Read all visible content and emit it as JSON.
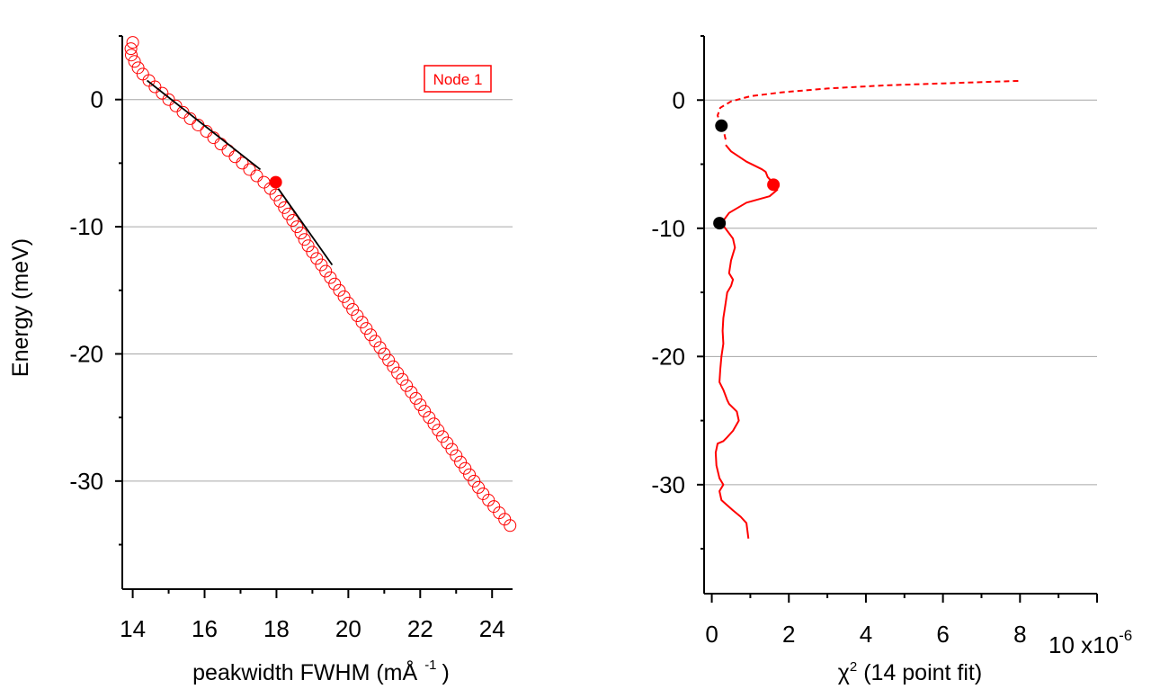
{
  "chart_data": [
    {
      "type": "scatter",
      "xlabel": "peakwidth FWHM (mÅ",
      "xlabel_sup": "-1",
      "xlabel_close": ")",
      "ylabel": "Energy (meV)",
      "xlim": [
        13.8,
        24.6
      ],
      "ylim": [
        -38.5,
        5
      ],
      "xticks": [
        14,
        16,
        18,
        20,
        22,
        24
      ],
      "yticks": [
        0,
        -10,
        -20,
        -30
      ],
      "grid": "horizontal",
      "legend": {
        "label": "Node 1",
        "color": "#ff0000",
        "placement": "top-right"
      },
      "series": [
        {
          "marker": "open-circle",
          "color": "#ff0000",
          "x": [
            14.0,
            13.95,
            13.96,
            14.05,
            14.15,
            14.28,
            14.45,
            14.62,
            14.82,
            15.0,
            15.2,
            15.4,
            15.6,
            15.82,
            16.05,
            16.25,
            16.45,
            16.65,
            16.85,
            17.05,
            17.25,
            17.45,
            17.65,
            17.83,
            17.98,
            18.1,
            18.22,
            18.33,
            18.45,
            18.57,
            18.68,
            18.78,
            18.88,
            19.0,
            19.12,
            19.25,
            19.37,
            19.5,
            19.62,
            19.75,
            19.88,
            20.0,
            20.12,
            20.25,
            20.38,
            20.5,
            20.62,
            20.75,
            20.88,
            21.0,
            21.12,
            21.25,
            21.37,
            21.5,
            21.62,
            21.75,
            21.88,
            22.0,
            22.12,
            22.25,
            22.38,
            22.5,
            22.62,
            22.75,
            22.88,
            23.0,
            23.12,
            23.25,
            23.37,
            23.5,
            23.62,
            23.75,
            23.9,
            24.05,
            24.2,
            24.35,
            24.5
          ],
          "y": [
            4.5,
            4.0,
            3.5,
            3.0,
            2.5,
            2.0,
            1.5,
            1.0,
            0.5,
            0.0,
            -0.5,
            -1.0,
            -1.5,
            -2.0,
            -2.5,
            -3.0,
            -3.5,
            -4.0,
            -4.5,
            -5.0,
            -5.5,
            -6.0,
            -6.5,
            -7.0,
            -7.5,
            -8.0,
            -8.5,
            -9.0,
            -9.5,
            -10.0,
            -10.5,
            -11.0,
            -11.5,
            -12.0,
            -12.5,
            -13.0,
            -13.5,
            -14.0,
            -14.5,
            -15.0,
            -15.5,
            -16.0,
            -16.5,
            -17.0,
            -17.5,
            -18.0,
            -18.5,
            -19.0,
            -19.5,
            -20.0,
            -20.5,
            -21.0,
            -21.5,
            -22.0,
            -22.5,
            -23.0,
            -23.5,
            -24.0,
            -24.5,
            -25.0,
            -25.5,
            -26.0,
            -26.5,
            -27.0,
            -27.5,
            -28.0,
            -28.5,
            -29.0,
            -29.5,
            -30.0,
            -30.5,
            -31.0,
            -31.5,
            -32.0,
            -32.5,
            -33.0,
            -33.5
          ]
        },
        {
          "marker": "line",
          "color": "#000000",
          "x": [
            14.4,
            17.55
          ],
          "y": [
            1.5,
            -5.5
          ]
        },
        {
          "marker": "line",
          "color": "#000000",
          "x": [
            18.05,
            19.55
          ],
          "y": [
            -7.0,
            -13.0
          ]
        },
        {
          "marker": "filled-circle",
          "color": "#ff0000",
          "x": [
            17.98
          ],
          "y": [
            -6.5
          ]
        }
      ]
    },
    {
      "type": "line",
      "xlabel": "χ",
      "xlabel_sup": "2",
      "xlabel_rest": " (14 point fit)",
      "x_multiplier": "10 x10",
      "x_multiplier_exp": "-6",
      "ylim": [
        -38.5,
        5
      ],
      "xlim": [
        -0.2,
        10
      ],
      "xticks": [
        0,
        2,
        4,
        6,
        8
      ],
      "yticks": [
        0,
        -10,
        -20,
        -30
      ],
      "grid": "horizontal",
      "series": [
        {
          "style": "dashed",
          "color": "#ff0000",
          "x": [
            0.25,
            0.15,
            0.22,
            0.5,
            1.0,
            1.8,
            3.0,
            4.5,
            6.0,
            7.2,
            8.0
          ],
          "y": [
            -2.0,
            -1.2,
            -0.6,
            -0.1,
            0.3,
            0.6,
            0.9,
            1.15,
            1.3,
            1.42,
            1.5
          ]
        },
        {
          "style": "dashed",
          "color": "#ff0000",
          "x": [
            0.25,
            0.33,
            0.36
          ],
          "y": [
            -2.0,
            -2.7,
            -3.1
          ]
        },
        {
          "style": "solid",
          "color": "#ff0000",
          "x": [
            0.36,
            0.5,
            0.9,
            1.3,
            1.4,
            1.45,
            1.6,
            1.7,
            1.5,
            0.9,
            0.45,
            0.25,
            0.4,
            0.55,
            0.6,
            0.5,
            0.45,
            0.55,
            0.5,
            0.4,
            0.35,
            0.3,
            0.28,
            0.3,
            0.25,
            0.22,
            0.2,
            0.3,
            0.35,
            0.4,
            0.45,
            0.55,
            0.65,
            0.7,
            0.55,
            0.4,
            0.3,
            0.15,
            0.1,
            0.12,
            0.2,
            0.3,
            0.2,
            0.25,
            0.4,
            0.55,
            0.75,
            0.9,
            0.95
          ],
          "y": [
            -3.5,
            -4.0,
            -4.8,
            -5.4,
            -5.6,
            -6.0,
            -6.5,
            -7.0,
            -7.5,
            -8.0,
            -8.8,
            -9.6,
            -10.2,
            -10.8,
            -11.5,
            -12.5,
            -13.5,
            -14.0,
            -14.5,
            -15.0,
            -16.0,
            -17.0,
            -18.0,
            -19.0,
            -20.0,
            -21.0,
            -22.0,
            -22.6,
            -23.0,
            -23.4,
            -23.7,
            -24.0,
            -24.3,
            -25.0,
            -25.8,
            -26.3,
            -26.6,
            -26.8,
            -27.5,
            -28.5,
            -29.5,
            -30.0,
            -30.5,
            -31.2,
            -31.6,
            -32.0,
            -32.5,
            -33.0,
            -34.2
          ]
        },
        {
          "marker": "filled-circle",
          "color": "#000000",
          "x": [
            0.25
          ],
          "y": [
            -2.0
          ]
        },
        {
          "marker": "filled-circle",
          "color": "#000000",
          "x": [
            0.2
          ],
          "y": [
            -9.6
          ]
        },
        {
          "marker": "filled-circle",
          "color": "#ff0000",
          "x": [
            1.6
          ],
          "y": [
            -6.6
          ]
        }
      ]
    }
  ]
}
